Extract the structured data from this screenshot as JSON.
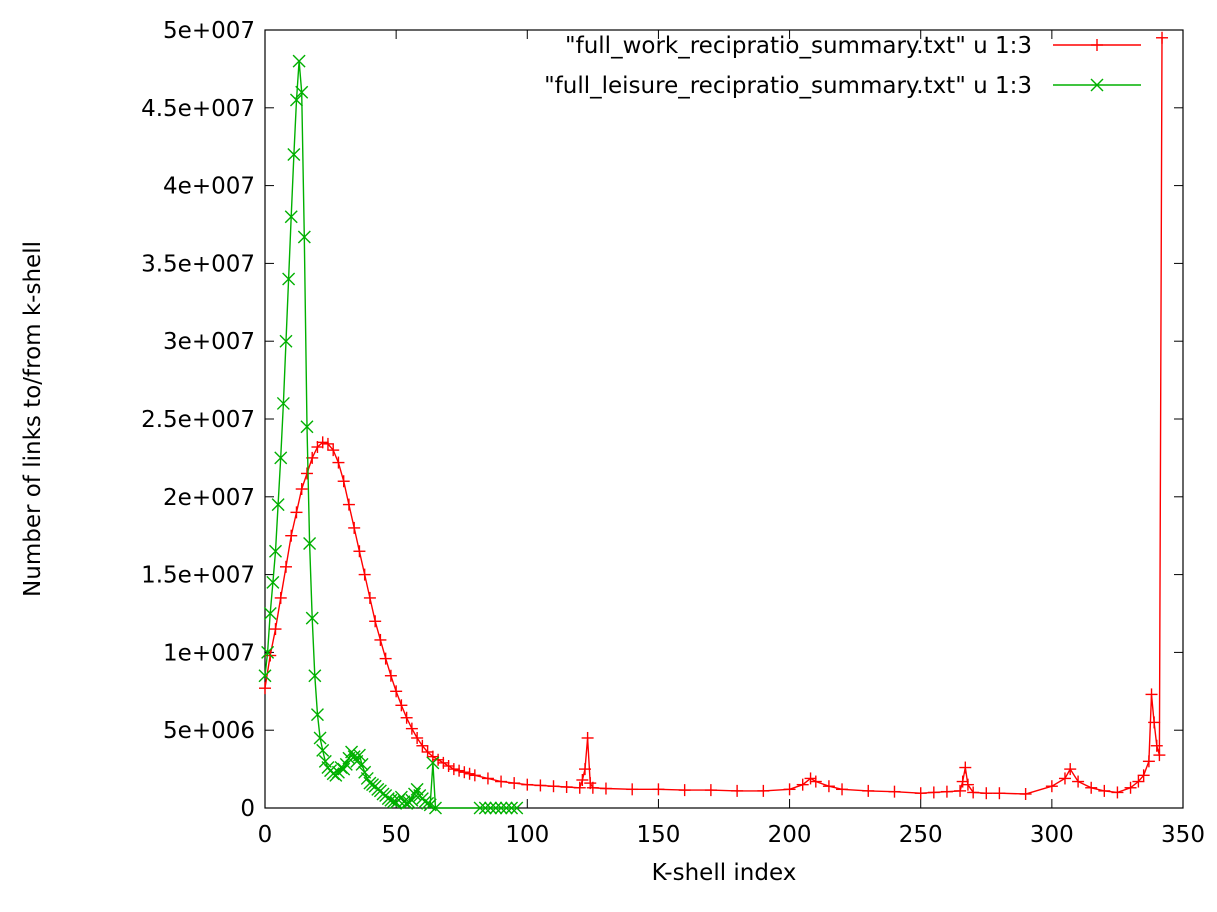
{
  "chart_data": {
    "type": "line",
    "title": "",
    "xlabel": "K-shell index",
    "ylabel": "Number of links to/from k-shell",
    "xlim": [
      0,
      350
    ],
    "ylim": [
      0,
      50000000
    ],
    "x_ticks": [
      "0",
      "50",
      "100",
      "150",
      "200",
      "250",
      "300",
      "350"
    ],
    "y_ticks": [
      "0",
      "5e+006",
      "1e+007",
      "1.5e+007",
      "2e+007",
      "2.5e+007",
      "3e+007",
      "3.5e+007",
      "4e+007",
      "4.5e+007",
      "5e+007"
    ],
    "grid": false,
    "legend_position": "top-right",
    "series": [
      {
        "name": "\"full_work_recipratio_summary.txt\" u 1:3",
        "color": "#ff0000",
        "marker": "plus",
        "x": [
          0,
          2,
          4,
          6,
          8,
          10,
          12,
          14,
          16,
          18,
          20,
          22,
          24,
          26,
          28,
          30,
          32,
          34,
          36,
          38,
          40,
          42,
          44,
          46,
          48,
          50,
          52,
          54,
          56,
          58,
          60,
          62,
          64,
          66,
          68,
          70,
          72,
          74,
          76,
          78,
          80,
          85,
          90,
          95,
          100,
          105,
          110,
          115,
          120,
          121,
          122,
          123,
          124,
          125,
          130,
          140,
          150,
          160,
          170,
          180,
          190,
          200,
          205,
          208,
          210,
          215,
          220,
          230,
          240,
          250,
          255,
          260,
          265,
          266,
          267,
          268,
          270,
          275,
          280,
          290,
          300,
          305,
          307,
          310,
          315,
          320,
          325,
          330,
          333,
          335,
          337,
          338,
          339,
          340,
          341,
          342
        ],
        "y": [
          7700000,
          9800000,
          11500000,
          13500000,
          15500000,
          17500000,
          19000000,
          20500000,
          21500000,
          22500000,
          23200000,
          23500000,
          23400000,
          23000000,
          22200000,
          21000000,
          19500000,
          18000000,
          16500000,
          15000000,
          13500000,
          12000000,
          10800000,
          9600000,
          8500000,
          7500000,
          6600000,
          5800000,
          5100000,
          4500000,
          4000000,
          3600000,
          3300000,
          3100000,
          2900000,
          2700000,
          2500000,
          2400000,
          2300000,
          2200000,
          2100000,
          1900000,
          1700000,
          1600000,
          1500000,
          1450000,
          1400000,
          1350000,
          1300000,
          1800000,
          2500000,
          4500000,
          1600000,
          1300000,
          1250000,
          1200000,
          1200000,
          1150000,
          1150000,
          1100000,
          1100000,
          1200000,
          1500000,
          1900000,
          1700000,
          1400000,
          1200000,
          1100000,
          1050000,
          950000,
          1000000,
          1050000,
          1100000,
          1700000,
          2600000,
          1500000,
          1000000,
          950000,
          950000,
          900000,
          1400000,
          1900000,
          2500000,
          1700000,
          1300000,
          1100000,
          1000000,
          1300000,
          1700000,
          2100000,
          3000000,
          7300000,
          5500000,
          4000000,
          3400000,
          49500000
        ]
      },
      {
        "name": "\"full_leisure_recipratio_summary.txt\" u 1:3",
        "color": "#00b000",
        "marker": "x",
        "x": [
          0,
          1,
          2,
          3,
          4,
          5,
          6,
          7,
          8,
          9,
          10,
          11,
          12,
          13,
          14,
          15,
          16,
          17,
          18,
          19,
          20,
          21,
          22,
          23,
          24,
          25,
          26,
          27,
          28,
          29,
          30,
          31,
          32,
          33,
          34,
          35,
          36,
          37,
          38,
          39,
          40,
          41,
          42,
          43,
          44,
          45,
          46,
          47,
          48,
          49,
          50,
          51,
          52,
          53,
          54,
          55,
          56,
          57,
          58,
          59,
          60,
          61,
          62,
          63,
          64,
          65,
          82,
          84,
          86,
          88,
          90,
          92,
          94,
          96
        ],
        "y": [
          8500000,
          10000000,
          12500000,
          14500000,
          16500000,
          19500000,
          22500000,
          26000000,
          30000000,
          34000000,
          38000000,
          42000000,
          45500000,
          48000000,
          46000000,
          36700000,
          24500000,
          17000000,
          12200000,
          8500000,
          6000000,
          4500000,
          3700000,
          3000000,
          2600000,
          2400000,
          2200000,
          2100000,
          2300000,
          2600000,
          2500000,
          2800000,
          3200000,
          3600000,
          3300000,
          3000000,
          3400000,
          2800000,
          2300000,
          1900000,
          1600000,
          1500000,
          1400000,
          1200000,
          1100000,
          900000,
          800000,
          600000,
          500000,
          400000,
          350000,
          500000,
          700000,
          400000,
          300000,
          350000,
          500000,
          900000,
          1200000,
          800000,
          600000,
          400000,
          300000,
          200000,
          2900000,
          0,
          0,
          0,
          0,
          0,
          0,
          0,
          0,
          0
        ]
      }
    ]
  }
}
